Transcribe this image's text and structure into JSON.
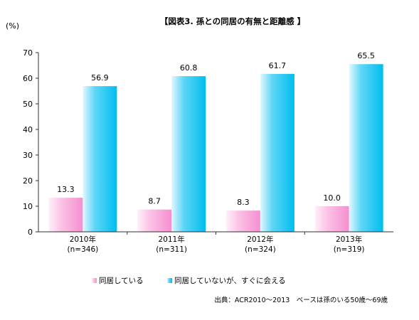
{
  "chart_data": {
    "type": "bar",
    "title": "【図表3. 孫との同居の有無と距離感 】",
    "ylabel": "(%)",
    "ylim": [
      0,
      70
    ],
    "yticks": [
      0,
      10,
      20,
      30,
      40,
      50,
      60,
      70
    ],
    "grid": false,
    "legend_position": "bottom",
    "categories": [
      {
        "year": "2010年",
        "n": "(n=346)"
      },
      {
        "year": "2011年",
        "n": "(n=311)"
      },
      {
        "year": "2012年",
        "n": "(n=324)"
      },
      {
        "year": "2013年",
        "n": "(n=319)"
      }
    ],
    "series": [
      {
        "name": "同居している",
        "color": "#f7a6d8",
        "values": [
          13.3,
          8.7,
          8.3,
          10.0
        ],
        "labels": [
          "13.3",
          "8.7",
          "8.3",
          "10.0"
        ]
      },
      {
        "name": "同居していないが、すぐに会える",
        "color": "#00c0ef",
        "values": [
          56.9,
          60.8,
          61.7,
          65.5
        ],
        "labels": [
          "56.9",
          "60.8",
          "61.7",
          "65.5"
        ]
      }
    ],
    "source": "出典：ACR2010～2013　ベースは孫のいる50歳～69歳"
  }
}
